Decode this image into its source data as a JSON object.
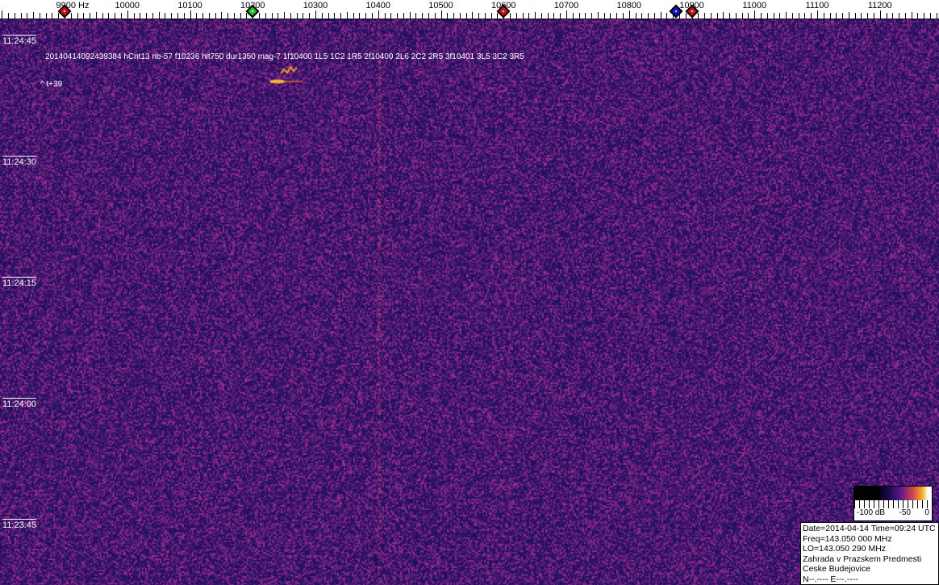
{
  "freq_axis": {
    "unit_label": "9900 Hz",
    "labels": [
      "9900 Hz",
      "10000",
      "10100",
      "10200",
      "10300",
      "10400",
      "10500",
      "10600",
      "10700",
      "10800",
      "10900",
      "11000",
      "11100",
      "11200"
    ],
    "markers": [
      {
        "freq": 9900,
        "color": "#d01010"
      },
      {
        "freq": 10200,
        "color": "#20c020"
      },
      {
        "freq": 10600,
        "color": "#d01010"
      },
      {
        "freq": 10875,
        "color": "#1010d0"
      },
      {
        "freq": 10900,
        "color": "#d01010"
      }
    ]
  },
  "time_labels": [
    "11:24:45",
    "11:24:30",
    "11:24:15",
    "11:24:00",
    "11:23:45"
  ],
  "annotation": "20140414092439384 hCnt13 nb-57 f10236 hit750 dur1350 mag-7 1f10400 1L5 1C2 1R5 2f10400 2L6 2C2 2R5 3f10401 3L5 3C2 3R5",
  "annotation2": "^ t+39",
  "colorbar": {
    "labels": [
      "-100 dB",
      "-50",
      "0"
    ]
  },
  "info": [
    "Date=2014-04-14 Time=09:24 UTC",
    "Freq=143.050 000 MHz",
    "LO=143.050 290 MHz",
    "Zahrada v Prazskem Predmesti",
    "Ceske Budejovice",
    "N--.---- E---.----"
  ]
}
